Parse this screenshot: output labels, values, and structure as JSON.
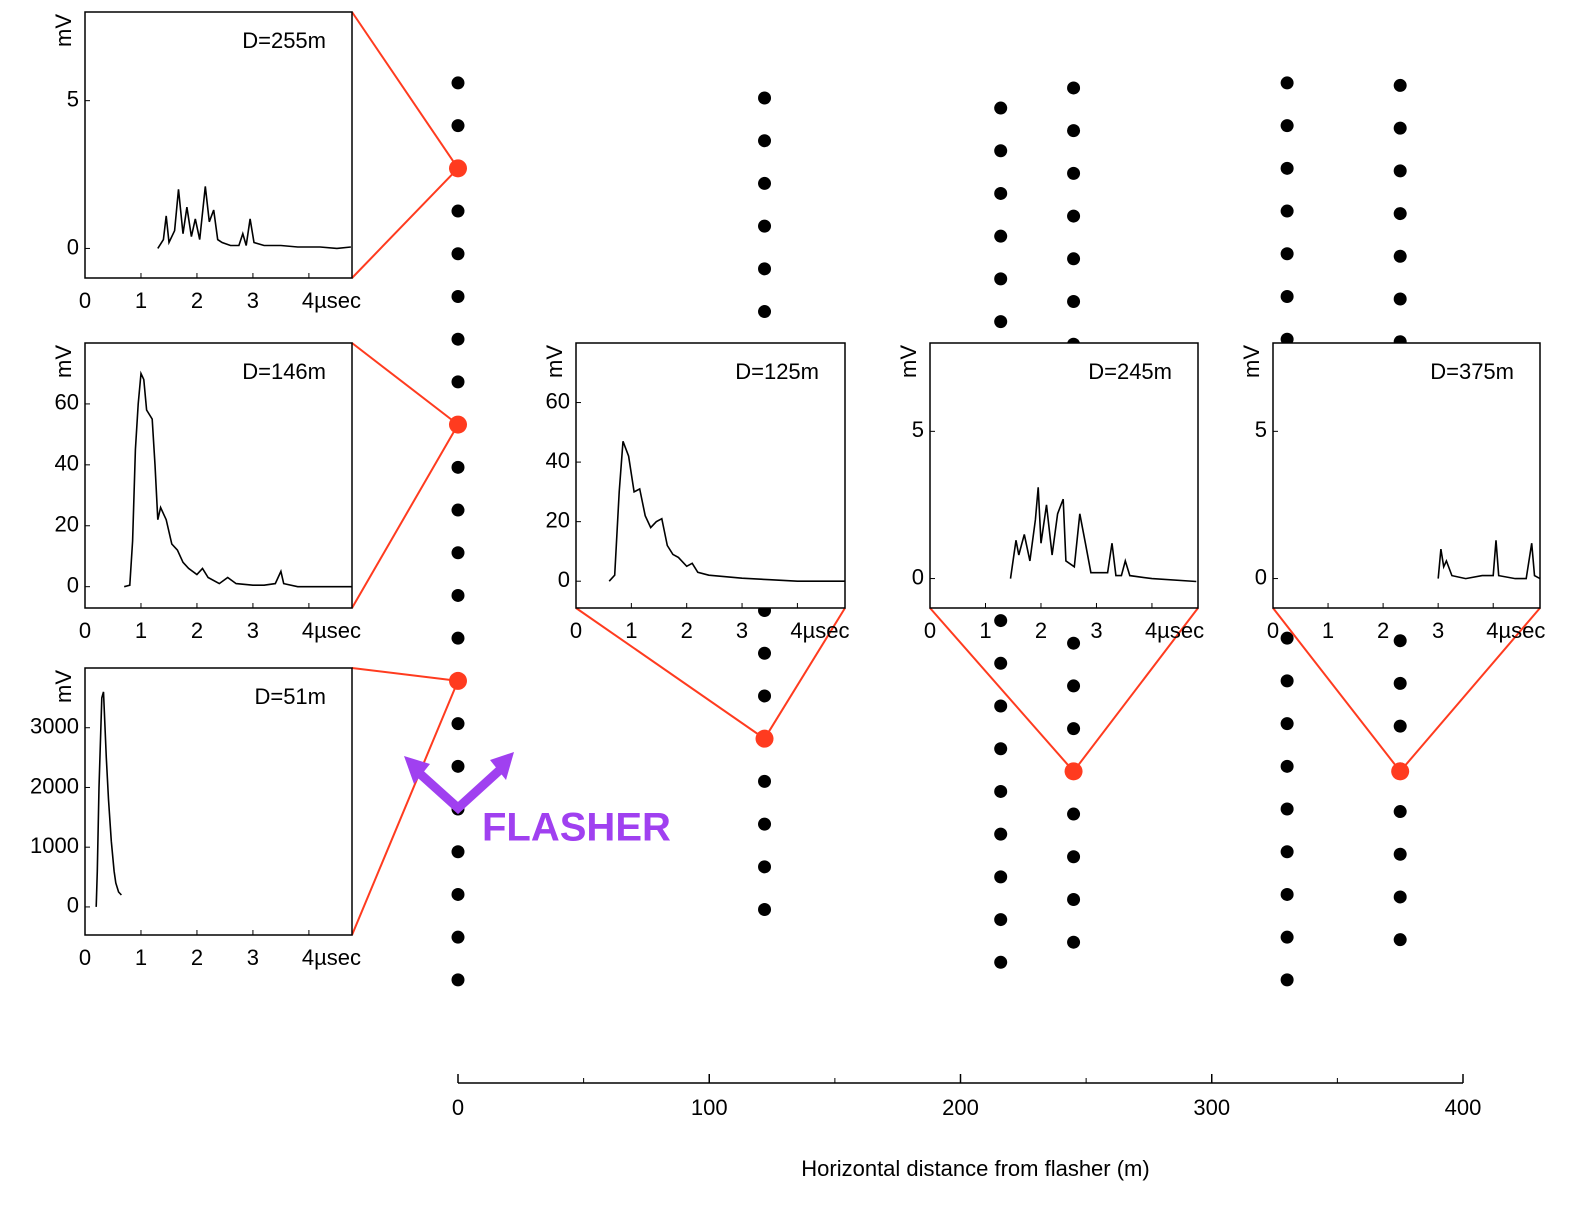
{
  "chart_data": [
    {
      "type": "line",
      "title": "D=255m",
      "ylabel": "mV",
      "color": "#000000",
      "x": [
        1.3,
        1.4,
        1.45,
        1.5,
        1.6,
        1.67,
        1.75,
        1.82,
        1.9,
        1.97,
        2.05,
        2.15,
        2.22,
        2.3,
        2.37,
        2.45,
        2.6,
        2.75,
        2.82,
        2.88,
        2.95,
        3.02,
        3.2,
        3.5,
        3.8,
        4.2,
        4.5,
        4.75
      ],
      "values": [
        0,
        0.3,
        1.1,
        0.2,
        0.6,
        2.0,
        0.5,
        1.4,
        0.4,
        1.0,
        0.3,
        2.1,
        0.9,
        1.3,
        0.3,
        0.2,
        0.1,
        0.1,
        0.5,
        0.1,
        1.0,
        0.2,
        0.1,
        0.1,
        0.05,
        0.05,
        0,
        0.05
      ],
      "xlim": [
        0,
        4.77
      ],
      "ylim": [
        -1,
        8
      ],
      "xticks": [
        0,
        1,
        2,
        3,
        {
          "value": 4,
          "label": "4µsec"
        }
      ],
      "yticks": [
        0,
        5
      ]
    },
    {
      "type": "line",
      "title": "D=146m",
      "ylabel": "mV",
      "color": "#000000",
      "x": [
        0.7,
        0.8,
        0.85,
        0.9,
        0.95,
        1.0,
        1.05,
        1.1,
        1.2,
        1.25,
        1.3,
        1.35,
        1.45,
        1.55,
        1.65,
        1.75,
        1.85,
        2.0,
        2.1,
        2.2,
        2.4,
        2.55,
        2.7,
        3.0,
        3.2,
        3.4,
        3.5,
        3.55,
        3.8,
        4.77
      ],
      "values": [
        0,
        0.5,
        15,
        45,
        60,
        70,
        68,
        58,
        55,
        40,
        22,
        26,
        22,
        14,
        12,
        8,
        6,
        4,
        6,
        3,
        1,
        3,
        1,
        0.5,
        0.5,
        1,
        5,
        1,
        0,
        0
      ],
      "xlim": [
        0,
        4.77
      ],
      "ylim": [
        -7,
        80
      ],
      "xticks": [
        0,
        1,
        2,
        3,
        {
          "value": 4,
          "label": "4µsec"
        }
      ],
      "yticks": [
        0,
        20,
        40,
        60
      ]
    },
    {
      "type": "line",
      "title": "D=51m",
      "ylabel": "mV",
      "color": "#000000",
      "x": [
        0.2,
        0.22,
        0.25,
        0.3,
        0.33,
        0.38,
        0.42,
        0.47,
        0.52,
        0.55,
        0.6,
        0.65
      ],
      "values": [
        0,
        600,
        2000,
        3500,
        3600,
        2500,
        1800,
        1100,
        600,
        400,
        250,
        200
      ],
      "xlim": [
        0,
        4.77
      ],
      "ylim": [
        -470,
        4000
      ],
      "xticks": [
        0,
        1,
        2,
        3,
        {
          "value": 4,
          "label": "4µsec"
        }
      ],
      "yticks": [
        0,
        1000,
        2000,
        3000
      ]
    },
    {
      "type": "line",
      "title": "D=125m",
      "ylabel": "mV",
      "color": "#000000",
      "x": [
        0.6,
        0.7,
        0.78,
        0.85,
        0.95,
        1.05,
        1.15,
        1.25,
        1.35,
        1.45,
        1.55,
        1.65,
        1.75,
        1.85,
        2.0,
        2.1,
        2.2,
        2.4,
        2.7,
        3.0,
        3.5,
        4.0,
        4.86
      ],
      "values": [
        0,
        2,
        30,
        47,
        42,
        30,
        31,
        22,
        18,
        20,
        21,
        12,
        9,
        8,
        5,
        6,
        3,
        2,
        1.5,
        1,
        0.5,
        0,
        0
      ],
      "xlim": [
        0,
        4.86
      ],
      "ylim": [
        -9,
        80
      ],
      "xticks": [
        0,
        1,
        2,
        3,
        {
          "value": 4,
          "label": "4µsec"
        }
      ],
      "yticks": [
        0,
        20,
        40,
        60
      ]
    },
    {
      "type": "line",
      "title": "D=245m",
      "ylabel": "mV",
      "color": "#000000",
      "x": [
        1.45,
        1.55,
        1.6,
        1.7,
        1.8,
        1.9,
        1.95,
        2.0,
        2.1,
        2.2,
        2.3,
        2.4,
        2.45,
        2.6,
        2.7,
        2.8,
        2.9,
        3.2,
        3.28,
        3.35,
        3.45,
        3.52,
        3.6,
        4.0,
        4.8
      ],
      "values": [
        0,
        1.3,
        0.8,
        1.5,
        0.6,
        2.0,
        3.1,
        1.2,
        2.5,
        0.8,
        2.2,
        2.7,
        0.6,
        0.4,
        2.2,
        1.2,
        0.2,
        0.2,
        1.2,
        0.1,
        0.1,
        0.6,
        0.1,
        0,
        -0.1
      ],
      "xlim": [
        0,
        4.83
      ],
      "ylim": [
        -1,
        8
      ],
      "xticks": [
        0,
        1,
        2,
        3,
        {
          "value": 4,
          "label": "4µsec"
        }
      ],
      "yticks": [
        0,
        5
      ]
    },
    {
      "type": "line",
      "title": "D=375m",
      "ylabel": "mV",
      "color": "#000000",
      "x": [
        3.0,
        3.05,
        3.1,
        3.15,
        3.25,
        3.5,
        3.8,
        4.0,
        4.05,
        4.1,
        4.4,
        4.6,
        4.7,
        4.75,
        4.85
      ],
      "values": [
        0,
        1.0,
        0.4,
        0.6,
        0.1,
        0,
        0.1,
        0.1,
        1.3,
        0.1,
        0,
        0,
        1.2,
        0.1,
        0
      ],
      "xlim": [
        0,
        4.85
      ],
      "ylim": [
        -1,
        8
      ],
      "xticks": [
        0,
        1,
        2,
        3,
        {
          "value": 4,
          "label": "4µsec"
        }
      ],
      "yticks": [
        0,
        5
      ]
    },
    {
      "type": "scatter",
      "xlabel": "Horizontal distance from flasher (m)",
      "annotation": "FLASHER",
      "xlim": [
        0,
        400
      ],
      "xticks": [
        0,
        100,
        200,
        300,
        400
      ],
      "xminorticks": [
        50,
        150,
        250,
        350
      ],
      "ylim": [
        0,
        480
      ],
      "y_inverted": true,
      "series": [
        {
          "color": "#000000",
          "x": 0,
          "y": [
            33,
            50,
            67,
            84,
            101,
            118,
            135,
            152,
            169,
            186,
            203,
            220,
            237,
            254,
            271,
            288,
            305,
            322,
            339,
            356,
            373,
            390
          ]
        },
        {
          "color": "#000000",
          "x": 122,
          "y": [
            39,
            56,
            73,
            90,
            107,
            124,
            141,
            158,
            175,
            192,
            209,
            226,
            243,
            260,
            277,
            294,
            311,
            328,
            345,
            362
          ]
        },
        {
          "color": "#000000",
          "x": 216,
          "y": [
            43,
            60,
            77,
            94,
            111,
            128,
            145,
            162,
            179,
            196,
            213,
            230,
            247,
            264,
            281,
            298,
            315,
            332,
            349,
            366,
            383
          ]
        },
        {
          "color": "#000000",
          "x": 245,
          "y": [
            35,
            52,
            69,
            86,
            103,
            120,
            137,
            154,
            171,
            188,
            205,
            222,
            239,
            256,
            273,
            290,
            307,
            324,
            341,
            358,
            375
          ]
        },
        {
          "color": "#000000",
          "x": 330,
          "y": [
            33,
            50,
            67,
            84,
            101,
            118,
            135,
            152,
            169,
            186,
            203,
            220,
            237,
            254,
            271,
            288,
            305,
            322,
            339,
            356,
            373,
            390
          ]
        },
        {
          "color": "#000000",
          "x": 375,
          "y": [
            34,
            51,
            68,
            85,
            102,
            119,
            136,
            153,
            170,
            187,
            204,
            221,
            238,
            255,
            272,
            289,
            306,
            323,
            340,
            357,
            374
          ]
        },
        {
          "color": "#ff3b1f",
          "x": [
            0,
            0,
            0,
            122,
            245,
            375
          ],
          "y": [
            67,
            169,
            271,
            294,
            307,
            307
          ]
        }
      ]
    }
  ]
}
